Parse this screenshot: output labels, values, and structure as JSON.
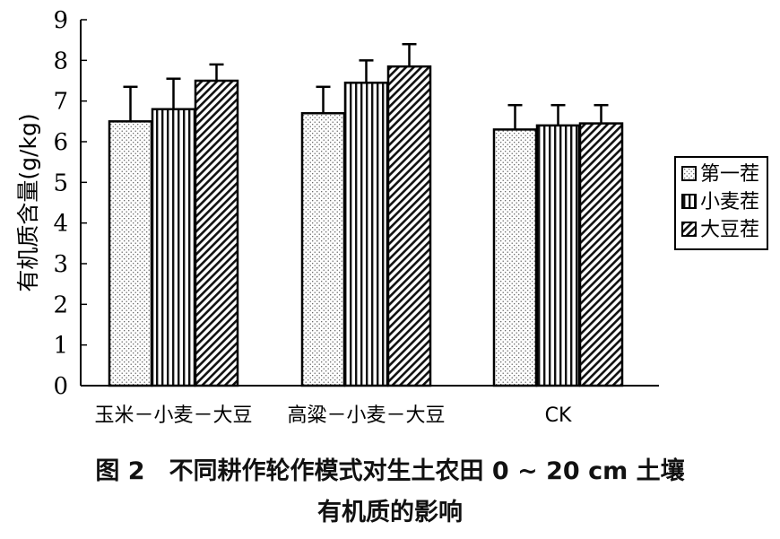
{
  "chart_data": {
    "type": "bar",
    "ylabel": "有机质含量(g/kg)",
    "ylim": [
      0,
      9
    ],
    "yticks": [
      0,
      1,
      2,
      3,
      4,
      5,
      6,
      7,
      8,
      9
    ],
    "categories": [
      "玉米－小麦－大豆",
      "高粱－小麦－大豆",
      "CK"
    ],
    "series": [
      {
        "name": "第一茬",
        "values": [
          6.5,
          6.7,
          6.3
        ],
        "errors": [
          0.85,
          0.65,
          0.6
        ],
        "pattern": "dots"
      },
      {
        "name": "小麦茬",
        "values": [
          6.8,
          7.45,
          6.4
        ],
        "errors": [
          0.75,
          0.55,
          0.5
        ],
        "pattern": "vlines"
      },
      {
        "name": "大豆茬",
        "values": [
          7.5,
          7.85,
          6.45
        ],
        "errors": [
          0.4,
          0.55,
          0.45
        ],
        "pattern": "diag"
      }
    ],
    "grid": false,
    "legend": "right"
  },
  "caption": {
    "line1": "图 2　不同耕作轮作模式对生土农田 0 ~ 20 cm 土壤",
    "line2": "有机质的影响"
  }
}
